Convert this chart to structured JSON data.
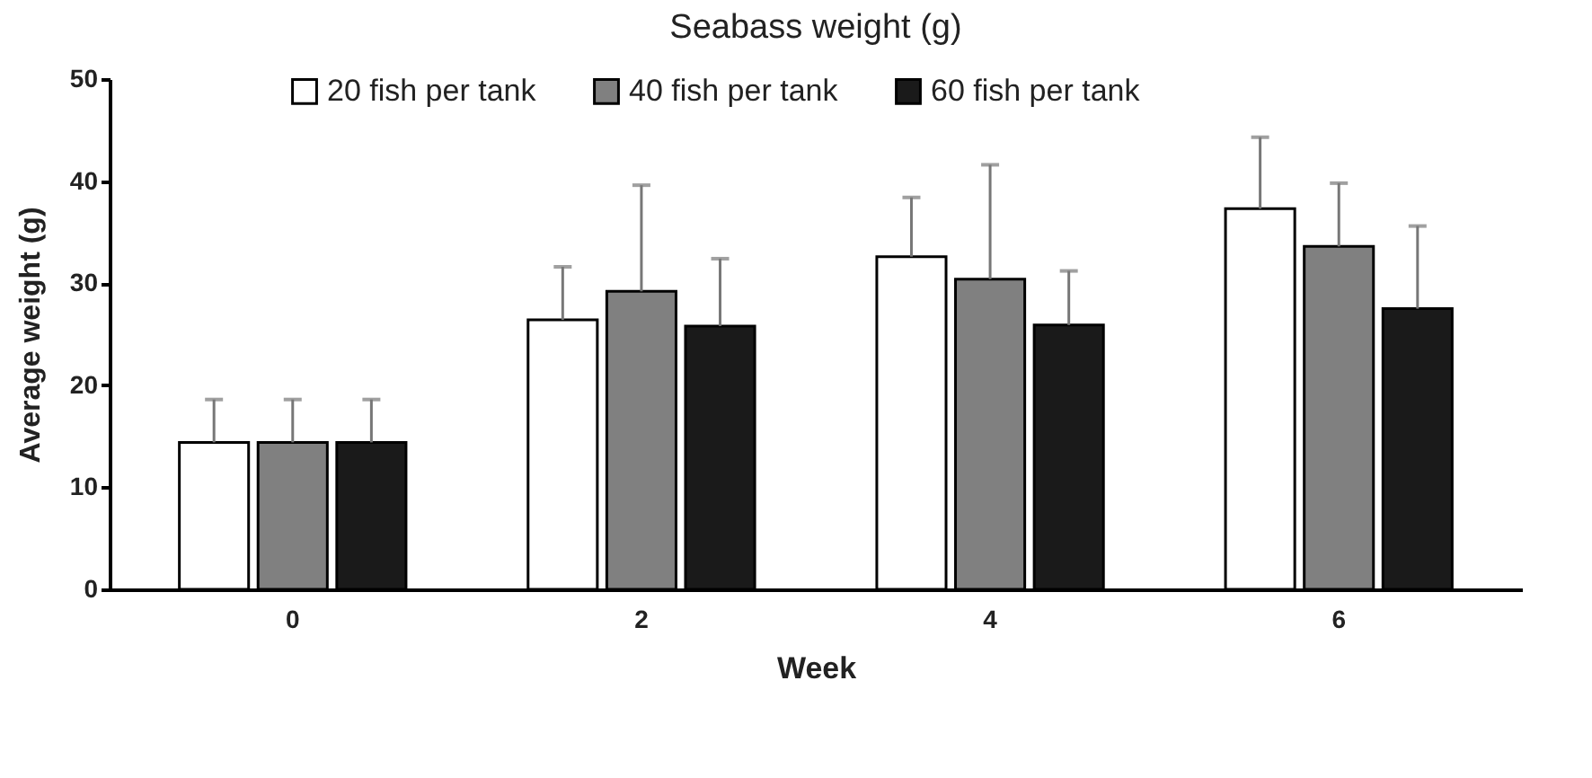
{
  "chart_data": {
    "type": "bar",
    "title": "Seabass weight (g)",
    "xlabel": "Week",
    "ylabel": "Average weight (g)",
    "categories": [
      "0",
      "2",
      "4",
      "6"
    ],
    "series": [
      {
        "name": "20 fish per tank",
        "color": "#ffffff",
        "values": [
          14.4,
          26.4,
          32.6,
          37.3
        ],
        "errors": [
          [
            14.4,
            18.6
          ],
          [
            26.4,
            31.6
          ],
          [
            32.6,
            38.4
          ],
          [
            37.3,
            44.3
          ]
        ]
      },
      {
        "name": "40 fish per tank",
        "color": "#808080",
        "values": [
          14.4,
          29.2,
          30.4,
          33.6
        ],
        "errors": [
          [
            14.4,
            18.6
          ],
          [
            29.2,
            39.6
          ],
          [
            30.4,
            41.6
          ],
          [
            33.6,
            39.8
          ]
        ]
      },
      {
        "name": "60 fish per tank",
        "color": "#1a1a1a",
        "values": [
          14.4,
          25.8,
          25.9,
          27.5
        ],
        "errors": [
          [
            14.4,
            18.6
          ],
          [
            25.8,
            32.4
          ],
          [
            25.9,
            31.2
          ],
          [
            27.5,
            35.6
          ]
        ]
      }
    ],
    "ylim": [
      0,
      50
    ],
    "yticks": [
      0,
      10,
      20,
      30,
      40,
      50
    ],
    "grid": false,
    "legend": "top"
  }
}
